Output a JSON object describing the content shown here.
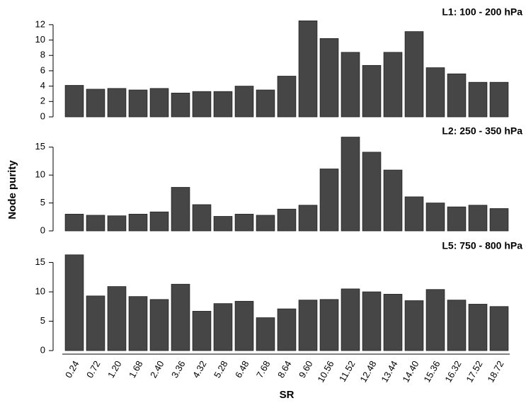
{
  "chart_data": [
    {
      "type": "bar",
      "title": "L1: 100 - 200 hPa",
      "color": "#464646",
      "values": [
        4.1,
        3.6,
        3.7,
        3.5,
        3.7,
        3.1,
        3.3,
        3.3,
        4.0,
        3.5,
        5.3,
        12.5,
        10.2,
        8.4,
        6.7,
        8.4,
        11.1,
        6.4,
        5.6,
        4.5,
        4.5
      ],
      "ylim": [
        0,
        13
      ],
      "yticks": [
        0,
        2,
        4,
        6,
        8,
        10,
        12
      ]
    },
    {
      "type": "bar",
      "title": "L2: 250 - 350 hPa",
      "color": "#464646",
      "ylabel": "Node purity",
      "values": [
        3.0,
        2.8,
        2.7,
        3.0,
        3.4,
        7.8,
        4.7,
        2.6,
        3.0,
        2.8,
        3.9,
        4.6,
        11.1,
        16.8,
        14.1,
        10.9,
        6.1,
        5.0,
        4.3,
        4.6,
        4.0
      ],
      "ylim": [
        0,
        17
      ],
      "yticks": [
        0,
        5,
        10,
        15
      ]
    },
    {
      "type": "bar",
      "title": "L5: 750 - 800 hPa",
      "color": "#464646",
      "xlabel": "SR",
      "categories": [
        "0.24",
        "0.72",
        "1.20",
        "1.68",
        "2.40",
        "3.36",
        "4.32",
        "5.28",
        "6.48",
        "7.68",
        "8.64",
        "9.60",
        "10.56",
        "11.52",
        "12.48",
        "13.44",
        "14.40",
        "15.36",
        "16.32",
        "17.52",
        "18.72"
      ],
      "values": [
        16.3,
        9.3,
        10.9,
        9.2,
        8.7,
        11.3,
        6.7,
        8.0,
        8.4,
        5.6,
        7.1,
        8.6,
        8.7,
        10.5,
        10.0,
        9.6,
        8.5,
        10.4,
        8.6,
        7.9,
        7.5
      ],
      "ylim": [
        0,
        17
      ],
      "yticks": [
        0,
        5,
        10,
        15
      ]
    }
  ]
}
